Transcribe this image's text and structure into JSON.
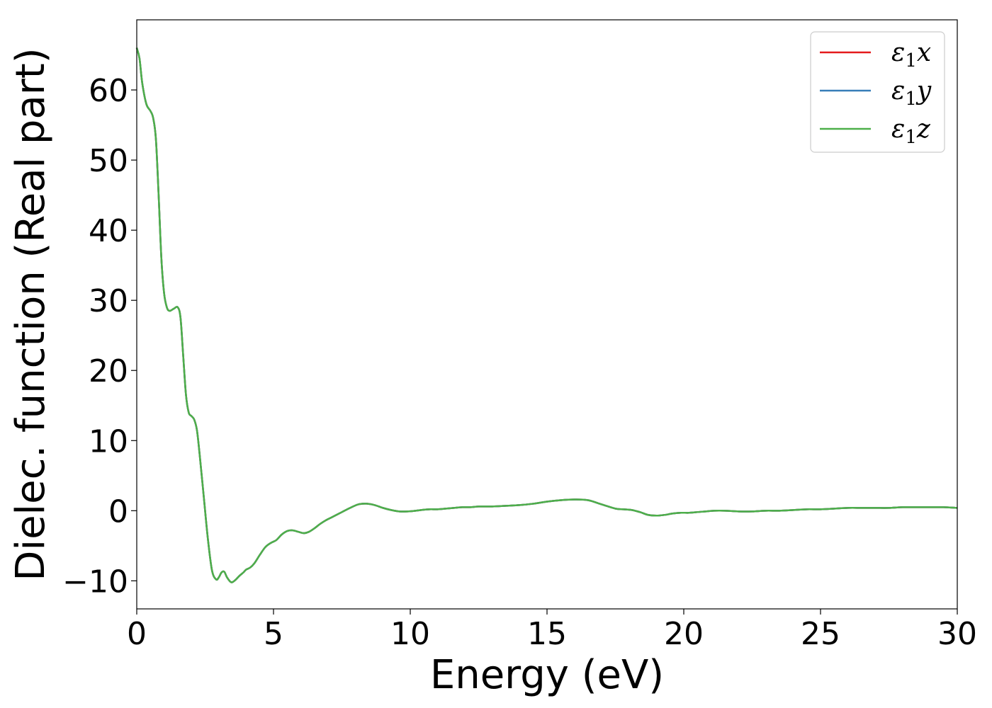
{
  "chart_data": {
    "type": "line",
    "title": "",
    "xlabel": "Energy (eV)",
    "ylabel": "Dielec. function (Real part)",
    "xlim": [
      0,
      30
    ],
    "ylim": [
      -14,
      70
    ],
    "xticks": [
      0,
      5,
      10,
      15,
      20,
      25,
      30
    ],
    "xtick_labels": [
      "0",
      "5",
      "10",
      "15",
      "20",
      "25",
      "30"
    ],
    "yticks": [
      -10,
      0,
      10,
      20,
      30,
      40,
      50,
      60
    ],
    "ytick_labels": [
      "−10",
      "0",
      "10",
      "20",
      "30",
      "40",
      "50",
      "60"
    ],
    "grid": false,
    "legend_position": "top-right",
    "x": [
      0,
      0.1,
      0.2,
      0.35,
      0.5,
      0.6,
      0.7,
      0.8,
      0.9,
      1.0,
      1.1,
      1.2,
      1.35,
      1.5,
      1.6,
      1.7,
      1.8,
      1.9,
      2.0,
      2.1,
      2.2,
      2.3,
      2.45,
      2.6,
      2.75,
      2.9,
      3.0,
      3.1,
      3.2,
      3.3,
      3.45,
      3.6,
      3.75,
      3.9,
      4.0,
      4.15,
      4.3,
      4.5,
      4.7,
      4.9,
      5.1,
      5.3,
      5.5,
      5.7,
      5.9,
      6.1,
      6.3,
      6.5,
      6.7,
      6.9,
      7.1,
      7.3,
      7.5,
      7.8,
      8.1,
      8.4,
      8.7,
      9.0,
      9.3,
      9.6,
      9.9,
      10.2,
      10.4,
      10.7,
      11.0,
      11.3,
      11.6,
      11.9,
      12.2,
      12.5,
      13.0,
      13.5,
      14.0,
      14.5,
      15.0,
      15.5,
      16.0,
      16.5,
      17.0,
      17.5,
      17.8,
      18.1,
      18.4,
      18.7,
      19.0,
      19.3,
      19.6,
      19.9,
      20.2,
      20.5,
      20.8,
      21.1,
      21.5,
      22.0,
      22.5,
      23.0,
      23.5,
      24.0,
      24.5,
      25.0,
      25.5,
      26.0,
      26.5,
      27.0,
      27.5,
      28.0,
      28.5,
      29.0,
      29.5,
      30.0
    ],
    "series": [
      {
        "name": "ε₁x",
        "color": "#e41a1c",
        "y": [
          66,
          64.5,
          61,
          58,
          57,
          56,
          53,
          45,
          36,
          31,
          29,
          28.5,
          28.8,
          29,
          27.5,
          22,
          16.5,
          14,
          13.5,
          13,
          11.5,
          8,
          2,
          -4,
          -8.5,
          -9.8,
          -9.5,
          -8.8,
          -8.7,
          -9.5,
          -10.2,
          -9.9,
          -9.3,
          -8.8,
          -8.4,
          -8.1,
          -7.5,
          -6.3,
          -5.2,
          -4.6,
          -4.2,
          -3.4,
          -2.9,
          -2.8,
          -3.0,
          -3.2,
          -3.0,
          -2.5,
          -1.9,
          -1.4,
          -1.0,
          -0.6,
          -0.2,
          0.4,
          0.9,
          1.0,
          0.8,
          0.4,
          0.1,
          -0.1,
          -0.1,
          0.0,
          0.1,
          0.2,
          0.2,
          0.3,
          0.4,
          0.5,
          0.5,
          0.6,
          0.6,
          0.7,
          0.8,
          1.0,
          1.3,
          1.5,
          1.6,
          1.5,
          0.9,
          0.3,
          0.2,
          0.1,
          -0.2,
          -0.6,
          -0.7,
          -0.6,
          -0.4,
          -0.3,
          -0.3,
          -0.2,
          -0.1,
          0.0,
          0.0,
          -0.1,
          -0.1,
          0.0,
          0.0,
          0.1,
          0.2,
          0.2,
          0.3,
          0.4,
          0.4,
          0.4,
          0.4,
          0.5,
          0.5,
          0.5,
          0.5,
          0.4
        ]
      },
      {
        "name": "ε₁y",
        "color": "#377eb8",
        "y": [
          66,
          64.5,
          61,
          58,
          57,
          56,
          53,
          45,
          36,
          31,
          29,
          28.5,
          28.8,
          29,
          27.5,
          22,
          16.5,
          14,
          13.5,
          13,
          11.5,
          8,
          2,
          -4,
          -8.5,
          -9.8,
          -9.5,
          -8.8,
          -8.7,
          -9.5,
          -10.2,
          -9.9,
          -9.3,
          -8.8,
          -8.4,
          -8.1,
          -7.5,
          -6.3,
          -5.2,
          -4.6,
          -4.2,
          -3.4,
          -2.9,
          -2.8,
          -3.0,
          -3.2,
          -3.0,
          -2.5,
          -1.9,
          -1.4,
          -1.0,
          -0.6,
          -0.2,
          0.4,
          0.9,
          1.0,
          0.8,
          0.4,
          0.1,
          -0.1,
          -0.1,
          0.0,
          0.1,
          0.2,
          0.2,
          0.3,
          0.4,
          0.5,
          0.5,
          0.6,
          0.6,
          0.7,
          0.8,
          1.0,
          1.3,
          1.5,
          1.6,
          1.5,
          0.9,
          0.3,
          0.2,
          0.1,
          -0.2,
          -0.6,
          -0.7,
          -0.6,
          -0.4,
          -0.3,
          -0.3,
          -0.2,
          -0.1,
          0.0,
          0.0,
          -0.1,
          -0.1,
          0.0,
          0.0,
          0.1,
          0.2,
          0.2,
          0.3,
          0.4,
          0.4,
          0.4,
          0.4,
          0.5,
          0.5,
          0.5,
          0.5,
          0.4
        ]
      },
      {
        "name": "ε₁z",
        "color": "#4daf4a",
        "y": [
          66,
          64.5,
          61,
          58,
          57,
          56,
          53,
          45,
          36,
          31,
          29,
          28.5,
          28.8,
          29,
          27.5,
          22,
          16.5,
          14,
          13.5,
          13,
          11.5,
          8,
          2,
          -4,
          -8.5,
          -9.8,
          -9.5,
          -8.8,
          -8.7,
          -9.5,
          -10.2,
          -9.9,
          -9.3,
          -8.8,
          -8.4,
          -8.1,
          -7.5,
          -6.3,
          -5.2,
          -4.6,
          -4.2,
          -3.4,
          -2.9,
          -2.8,
          -3.0,
          -3.2,
          -3.0,
          -2.5,
          -1.9,
          -1.4,
          -1.0,
          -0.6,
          -0.2,
          0.4,
          0.9,
          1.0,
          0.8,
          0.4,
          0.1,
          -0.1,
          -0.1,
          0.0,
          0.1,
          0.2,
          0.2,
          0.3,
          0.4,
          0.5,
          0.5,
          0.6,
          0.6,
          0.7,
          0.8,
          1.0,
          1.3,
          1.5,
          1.6,
          1.5,
          0.9,
          0.3,
          0.2,
          0.1,
          -0.2,
          -0.6,
          -0.7,
          -0.6,
          -0.4,
          -0.3,
          -0.3,
          -0.2,
          -0.1,
          0.0,
          0.0,
          -0.1,
          -0.1,
          0.0,
          0.0,
          0.1,
          0.2,
          0.2,
          0.3,
          0.4,
          0.4,
          0.4,
          0.4,
          0.5,
          0.5,
          0.5,
          0.5,
          0.4
        ]
      }
    ],
    "legend": [
      {
        "symbol": "ε",
        "sub": "1",
        "axis": "x",
        "color": "#e41a1c"
      },
      {
        "symbol": "ε",
        "sub": "1",
        "axis": "y",
        "color": "#377eb8"
      },
      {
        "symbol": "ε",
        "sub": "1",
        "axis": "z",
        "color": "#4daf4a"
      }
    ]
  }
}
